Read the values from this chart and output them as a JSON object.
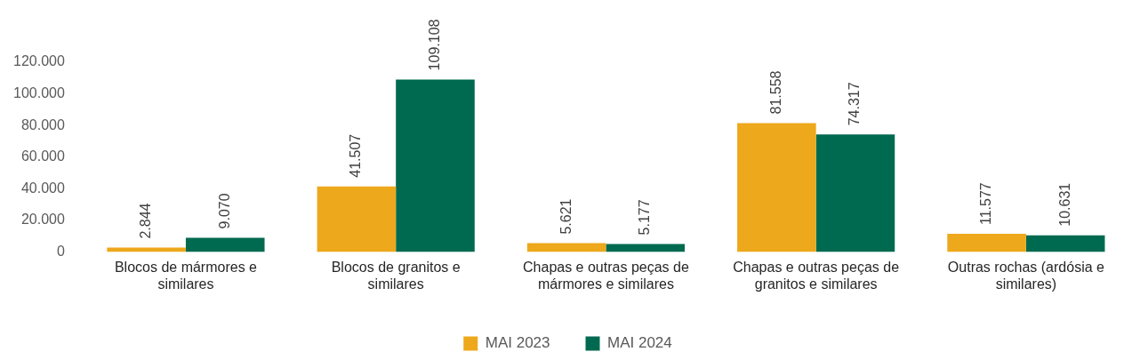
{
  "chart_data": {
    "type": "bar",
    "categories": [
      "Blocos de mármores e similares",
      "Blocos de granitos e similares",
      "Chapas e outras peças de mármores e similares",
      "Chapas e outras peças de granitos e similares",
      "Outras rochas (ardósia e similares)"
    ],
    "series": [
      {
        "name": "MAI 2023",
        "color": "#eea81c",
        "values": [
          2844,
          41507,
          5621,
          81558,
          11577
        ],
        "value_labels": [
          "2.844",
          "41.507",
          "5.621",
          "81.558",
          "11.577"
        ]
      },
      {
        "name": "MAI 2024",
        "color": "#006a50",
        "values": [
          9070,
          109108,
          5177,
          74317,
          10631
        ],
        "value_labels": [
          "9.070",
          "109.108",
          "5.177",
          "74.317",
          "10.631"
        ]
      }
    ],
    "ylim": [
      0,
      120000
    ],
    "yticks": [
      {
        "value": 0,
        "label": "0"
      },
      {
        "value": 20000,
        "label": "20.000"
      },
      {
        "value": 40000,
        "label": "40.000"
      },
      {
        "value": 60000,
        "label": "60.000"
      },
      {
        "value": 80000,
        "label": "80.000"
      },
      {
        "value": 100000,
        "label": "100.000"
      },
      {
        "value": 120000,
        "label": "120.000"
      }
    ],
    "grid": false,
    "legend": "bottom"
  }
}
